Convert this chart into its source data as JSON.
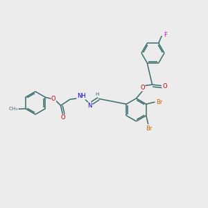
{
  "background_color": "#ececec",
  "bond_color": "#3a6b6b",
  "atom_colors": {
    "O": "#cc0000",
    "N": "#0000cc",
    "Br": "#cc6600",
    "F": "#cc00cc",
    "C": "#3a6b6b",
    "H": "#3a6b6b"
  },
  "figsize": [
    3.0,
    3.0
  ],
  "dpi": 100,
  "bond_lw": 1.1,
  "ring_r": 0.55,
  "font_size": 6.0
}
